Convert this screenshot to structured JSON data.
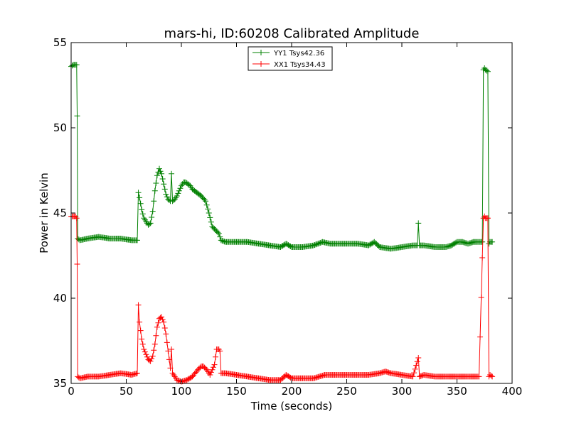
{
  "chart_data": {
    "type": "line",
    "title": "mars-hi, ID:60208 Calibrated Amplitude",
    "xlabel": "Time (seconds)",
    "ylabel": "Power in Kelvin",
    "xlim": [
      0,
      400
    ],
    "ylim": [
      35,
      55
    ],
    "xticks": [
      0,
      50,
      100,
      150,
      200,
      250,
      300,
      350,
      400
    ],
    "yticks": [
      35,
      40,
      45,
      50,
      55
    ],
    "grid": false,
    "legend_position": "top-center",
    "marker": "+",
    "series": [
      {
        "name": "YY1 Tsys42.36",
        "color": "#008000",
        "x": [
          0,
          2,
          5,
          5.5,
          6,
          8,
          15,
          25,
          35,
          45,
          55,
          60,
          61,
          62,
          64,
          66,
          68,
          70,
          72,
          74,
          76,
          78,
          80,
          82,
          84,
          86,
          88,
          90,
          91,
          92,
          94,
          96,
          98,
          100,
          102,
          104,
          106,
          108,
          110,
          114,
          118,
          122,
          125,
          128,
          131,
          134,
          136,
          140,
          150,
          160,
          170,
          180,
          190,
          195,
          200,
          210,
          220,
          228,
          235,
          250,
          260,
          270,
          275,
          280,
          290,
          300,
          310,
          314,
          315,
          316,
          320,
          330,
          340,
          345,
          350,
          355,
          360,
          365,
          370,
          373,
          374,
          375,
          376,
          378,
          379,
          380,
          382
        ],
        "values": [
          53.6,
          53.7,
          53.7,
          50.7,
          43.5,
          43.4,
          43.5,
          43.6,
          43.5,
          43.5,
          43.4,
          43.4,
          46.2,
          45.9,
          45.2,
          44.7,
          44.5,
          44.3,
          44.4,
          45.1,
          46.3,
          47.2,
          47.6,
          47.3,
          46.7,
          46.1,
          45.8,
          45.7,
          47.3,
          45.7,
          45.8,
          46.0,
          46.3,
          46.6,
          46.8,
          46.8,
          46.7,
          46.6,
          46.4,
          46.2,
          46.0,
          45.7,
          45.0,
          44.2,
          44.0,
          43.8,
          43.4,
          43.3,
          43.3,
          43.3,
          43.2,
          43.1,
          43.0,
          43.2,
          43.0,
          43.0,
          43.1,
          43.3,
          43.2,
          43.2,
          43.2,
          43.1,
          43.3,
          43.0,
          42.9,
          43.0,
          43.1,
          43.1,
          44.4,
          43.1,
          43.1,
          43.0,
          43.0,
          43.1,
          43.3,
          43.3,
          43.2,
          43.3,
          43.3,
          43.3,
          53.4,
          53.5,
          53.4,
          53.3,
          43.2,
          43.3,
          43.3
        ]
      },
      {
        "name": "XX1 Tsys34.43",
        "color": "#ff0000",
        "x": [
          0,
          2,
          4,
          5,
          5.5,
          6,
          8,
          15,
          25,
          35,
          45,
          55,
          60,
          61,
          62,
          64,
          66,
          68,
          70,
          72,
          74,
          76,
          78,
          80,
          82,
          84,
          86,
          88,
          90,
          91,
          92,
          94,
          96,
          100,
          105,
          110,
          115,
          118,
          120,
          123,
          126,
          130,
          132,
          134,
          135,
          136,
          140,
          150,
          160,
          170,
          180,
          190,
          195,
          200,
          210,
          220,
          230,
          240,
          250,
          260,
          270,
          280,
          285,
          290,
          300,
          310,
          315,
          316,
          320,
          330,
          340,
          350,
          360,
          370,
          374,
          375,
          376,
          378,
          379,
          380,
          382
        ],
        "values": [
          44.8,
          44.8,
          44.8,
          44.7,
          42.0,
          35.4,
          35.3,
          35.4,
          35.4,
          35.5,
          35.6,
          35.5,
          35.6,
          39.6,
          38.6,
          37.6,
          37.0,
          36.7,
          36.4,
          36.3,
          36.6,
          37.3,
          38.3,
          38.8,
          38.9,
          38.6,
          37.9,
          36.9,
          35.9,
          37.0,
          35.6,
          35.4,
          35.2,
          35.1,
          35.2,
          35.4,
          35.8,
          36.0,
          36.0,
          35.8,
          35.5,
          36.1,
          37.0,
          37.0,
          36.9,
          35.6,
          35.6,
          35.5,
          35.4,
          35.3,
          35.2,
          35.2,
          35.5,
          35.3,
          35.3,
          35.3,
          35.5,
          35.5,
          35.5,
          35.5,
          35.5,
          35.6,
          35.7,
          35.6,
          35.5,
          35.4,
          36.5,
          35.4,
          35.5,
          35.4,
          35.4,
          35.4,
          35.4,
          35.4,
          44.7,
          44.8,
          44.7,
          44.7,
          35.4,
          35.5,
          35.4
        ]
      }
    ]
  }
}
